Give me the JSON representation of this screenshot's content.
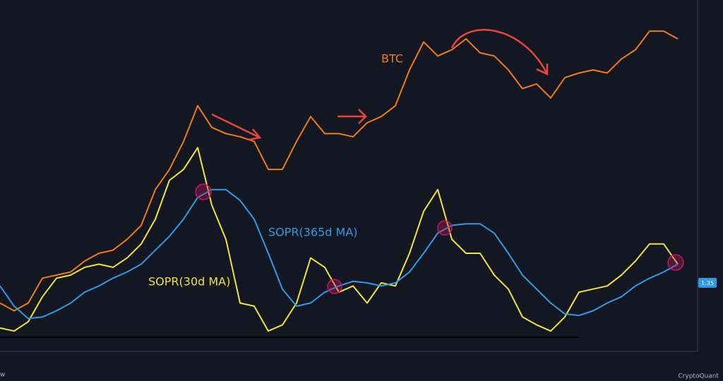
{
  "chart_data": {
    "type": "line",
    "series": [
      {
        "name": "BTC",
        "color": "#f07c16",
        "values": [
          1.22,
          1.17,
          1.22,
          1.38,
          1.4,
          1.42,
          1.49,
          1.54,
          1.56,
          1.63,
          1.72,
          1.95,
          2.08,
          2.26,
          2.49,
          2.35,
          2.31,
          2.29,
          2.26,
          2.08,
          2.08,
          2.26,
          2.42,
          2.31,
          2.31,
          2.29,
          2.38,
          2.42,
          2.49,
          2.72,
          2.9,
          2.81,
          2.85,
          2.92,
          2.83,
          2.81,
          2.72,
          2.6,
          2.63,
          2.54,
          2.67,
          2.7,
          2.72,
          2.7,
          2.79,
          2.85,
          2.97,
          2.97,
          2.92
        ]
      },
      {
        "name": "SOPR(30d MA)",
        "color": "#f2e33a",
        "values": [
          1.06,
          1.04,
          1.1,
          1.26,
          1.38,
          1.4,
          1.45,
          1.47,
          1.45,
          1.51,
          1.6,
          1.76,
          2.01,
          2.08,
          2.22,
          1.85,
          1.63,
          1.22,
          1.2,
          1.04,
          1.08,
          1.22,
          1.51,
          1.45,
          1.29,
          1.33,
          1.22,
          1.35,
          1.33,
          1.54,
          1.81,
          1.95,
          1.63,
          1.54,
          1.54,
          1.4,
          1.31,
          1.13,
          1.08,
          1.04,
          1.13,
          1.29,
          1.31,
          1.33,
          1.4,
          1.49,
          1.6,
          1.6,
          1.47
        ]
      },
      {
        "name": "SOPR(365d MA)",
        "color": "#2e9be6",
        "values": [
          1.33,
          1.2,
          1.12,
          1.13,
          1.17,
          1.22,
          1.29,
          1.33,
          1.38,
          1.42,
          1.47,
          1.56,
          1.65,
          1.76,
          1.9,
          1.95,
          1.95,
          1.88,
          1.76,
          1.54,
          1.31,
          1.2,
          1.22,
          1.29,
          1.33,
          1.36,
          1.35,
          1.33,
          1.35,
          1.42,
          1.54,
          1.67,
          1.72,
          1.73,
          1.73,
          1.67,
          1.54,
          1.4,
          1.31,
          1.22,
          1.15,
          1.14,
          1.17,
          1.22,
          1.26,
          1.33,
          1.38,
          1.42,
          1.47
        ]
      }
    ],
    "ylim": [
      0.9,
      3.17
    ],
    "yticks": [
      1.35
    ],
    "hline": 1,
    "watermark": "CryptoQuant",
    "corner_text": "w"
  }
}
